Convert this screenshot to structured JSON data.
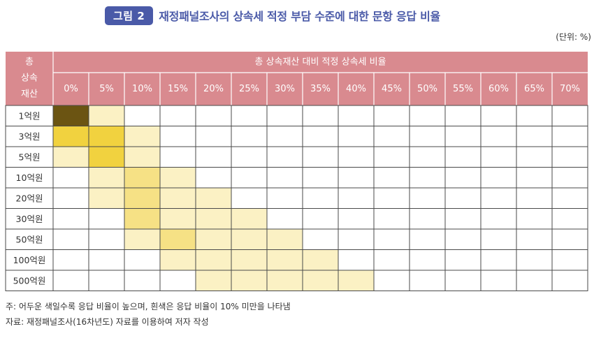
{
  "figure": {
    "label": "그림 2",
    "title": "재정패널조사의 상속세 적정 부담 수준에 대한 문항 응답 비율",
    "unit": "(단위: %)"
  },
  "notes": {
    "note": "주: 어두운 색일수록 응답 비율이 높으며, 흰색은 응답 비율이 10% 미만을 나타냄",
    "source": "자료: 재정패널조사(16차년도) 자료를 이용하여 저자 작성"
  },
  "chart_data": {
    "type": "heatmap",
    "row_header_lines": [
      "총",
      "상속",
      "재산"
    ],
    "column_group_label": "총 상속재산 대비 적정 상속세 비율",
    "x_labels": [
      "0%",
      "5%",
      "10%",
      "15%",
      "20%",
      "25%",
      "30%",
      "35%",
      "40%",
      "45%",
      "50%",
      "55%",
      "60%",
      "65%",
      "70%"
    ],
    "y_labels": [
      "1억원",
      "3억원",
      "5억원",
      "10억원",
      "20억원",
      "30억원",
      "50억원",
      "100억원",
      "500억원"
    ],
    "levels": [
      [
        4,
        1,
        0,
        0,
        0,
        0,
        0,
        0,
        0,
        0,
        0,
        0,
        0,
        0,
        0
      ],
      [
        3,
        3,
        1,
        0,
        0,
        0,
        0,
        0,
        0,
        0,
        0,
        0,
        0,
        0,
        0
      ],
      [
        1,
        3,
        1,
        0,
        0,
        0,
        0,
        0,
        0,
        0,
        0,
        0,
        0,
        0,
        0
      ],
      [
        0,
        1,
        2,
        1,
        0,
        0,
        0,
        0,
        0,
        0,
        0,
        0,
        0,
        0,
        0
      ],
      [
        0,
        1,
        2,
        1,
        1,
        0,
        0,
        0,
        0,
        0,
        0,
        0,
        0,
        0,
        0
      ],
      [
        0,
        0,
        2,
        1,
        1,
        1,
        0,
        0,
        0,
        0,
        0,
        0,
        0,
        0,
        0
      ],
      [
        0,
        0,
        1,
        2,
        1,
        1,
        1,
        0,
        0,
        0,
        0,
        0,
        0,
        0,
        0
      ],
      [
        0,
        0,
        0,
        1,
        1,
        1,
        1,
        1,
        0,
        0,
        0,
        0,
        0,
        0,
        0
      ],
      [
        0,
        0,
        0,
        0,
        1,
        1,
        1,
        1,
        1,
        0,
        0,
        0,
        0,
        0,
        0
      ]
    ],
    "level_colors": [
      "#ffffff",
      "#fbf1c4",
      "#f6e185",
      "#f1d23f",
      "#6b5412"
    ],
    "header_color": "#d98a8f",
    "header_text_color": "#ffffff",
    "grid_color": "#4a4a4a"
  }
}
